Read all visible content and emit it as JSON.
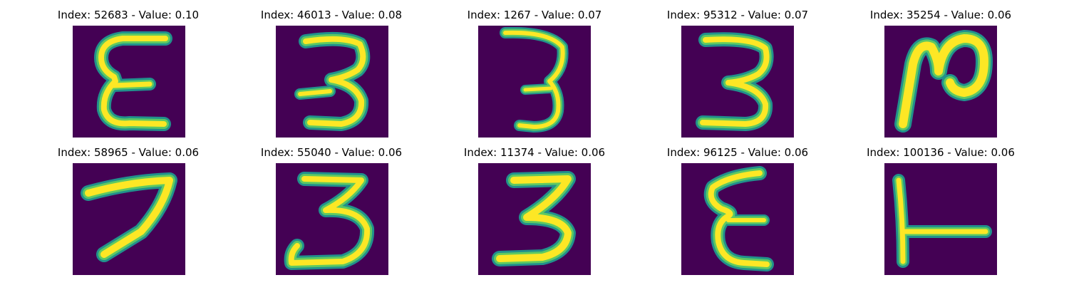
{
  "colors": {
    "background": "#440154",
    "stroke_core": "#fde725",
    "stroke_mid": "#5ec962",
    "stroke_edge": "#21918c"
  },
  "grid": [
    {
      "title": "Index: 52683 - Value: 0.10",
      "glyph": "E"
    },
    {
      "title": "Index: 46013 - Value: 0.08",
      "glyph": "3"
    },
    {
      "title": "Index: 1267 - Value: 0.07",
      "glyph": "3"
    },
    {
      "title": "Index: 95312 - Value: 0.07",
      "glyph": "3"
    },
    {
      "title": "Index: 35254 - Value: 0.06",
      "glyph": "N"
    },
    {
      "title": "Index: 58965 - Value: 0.06",
      "glyph": "7"
    },
    {
      "title": "Index: 55040 - Value: 0.06",
      "glyph": "3"
    },
    {
      "title": "Index: 11374 - Value: 0.06",
      "glyph": "3"
    },
    {
      "title": "Index: 96125 - Value: 0.06",
      "glyph": "E"
    },
    {
      "title": "Index: 100136 - Value: 0.06",
      "glyph": "T"
    }
  ]
}
